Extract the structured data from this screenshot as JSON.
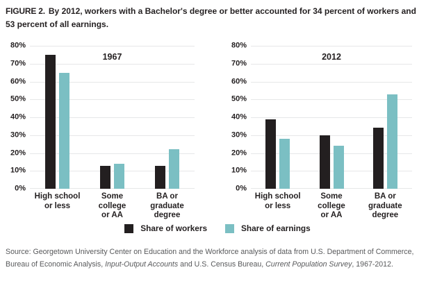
{
  "figure": {
    "label": "FIGURE 2.",
    "title": "By 2012, workers with a Bachelor's degree or better accounted for 34 percent of workers and 53 percent of all earnings."
  },
  "legend": [
    {
      "label": "Share of workers",
      "color": "#231f20"
    },
    {
      "label": "Share of earnings",
      "color": "#7bbfc3"
    }
  ],
  "colors": {
    "workers_bar": "#231f20",
    "earnings_bar": "#7bbfc3",
    "gridline": "#e6e7e8",
    "source_text": "#58595b"
  },
  "source": {
    "prefix": "Source:  Georgetown University Center on Education and the Workforce analysis of data from U.S. Department of Commerce, Bureau of Economic Analysis, ",
    "italic_1": "Input-Output Accounts",
    "middle": " and U.S. Census Bureau, ",
    "italic_2": "Current Population Survey",
    "suffix": ", 1967-2012."
  },
  "chart_data": [
    {
      "type": "bar",
      "title": "1967",
      "categories": [
        "High school or less",
        "Some college or AA",
        "BA or graduate degree"
      ],
      "category_lines": [
        [
          "High school",
          "or less"
        ],
        [
          "Some",
          "college",
          "or AA"
        ],
        [
          "BA or",
          "graduate",
          "degree"
        ]
      ],
      "series": [
        {
          "name": "Share of workers",
          "color": "#231f20",
          "values": [
            75,
            13,
            13
          ]
        },
        {
          "name": "Share of earnings",
          "color": "#7bbfc3",
          "values": [
            65,
            14,
            22
          ]
        }
      ],
      "xlabel": "",
      "ylabel": "",
      "ylim": [
        0,
        80
      ],
      "ytick_step": 10,
      "ytick_suffix": "%",
      "grid": true,
      "legend_position": "bottom"
    },
    {
      "type": "bar",
      "title": "2012",
      "categories": [
        "High school or less",
        "Some college or AA",
        "BA or graduate degree"
      ],
      "category_lines": [
        [
          "High school",
          "or less"
        ],
        [
          "Some",
          "college",
          "or AA"
        ],
        [
          "BA or",
          "graduate",
          "degree"
        ]
      ],
      "series": [
        {
          "name": "Share of workers",
          "color": "#231f20",
          "values": [
            39,
            30,
            34
          ]
        },
        {
          "name": "Share of earnings",
          "color": "#7bbfc3",
          "values": [
            28,
            24,
            53
          ]
        }
      ],
      "xlabel": "",
      "ylabel": "",
      "ylim": [
        0,
        80
      ],
      "ytick_step": 10,
      "ytick_suffix": "%",
      "grid": true,
      "legend_position": "bottom"
    }
  ]
}
